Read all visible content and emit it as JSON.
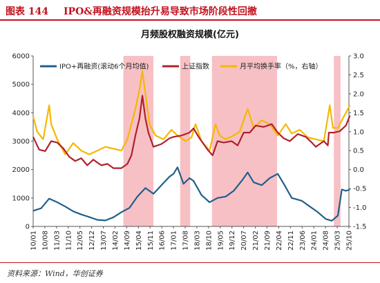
{
  "figure": {
    "label": "图表 144",
    "title": "IPO&再融资规模抬升易导致市场阶段性回撤",
    "source": "资料来源：Wind，华创证券"
  },
  "chart_data": {
    "type": "line",
    "title": "月频股权融资规模(亿元)",
    "x_tick_labels": [
      "10/01",
      "10/08",
      "11/03",
      "11/10",
      "12/05",
      "12/12",
      "13/07",
      "14/02",
      "14/09",
      "15/04",
      "15/11",
      "16/06",
      "17/01",
      "17/08",
      "18/03",
      "18/10",
      "19/05",
      "19/12",
      "20/07",
      "21/02",
      "21/09",
      "22/04",
      "22/11",
      "23/06",
      "24/01",
      "24/08",
      "25/03",
      "25/10"
    ],
    "x_range": [
      "2010-01",
      "2025-10"
    ],
    "y_left": {
      "min": 0,
      "max": 6000,
      "ticks": [
        "0",
        "1000",
        "2000",
        "3000",
        "4000",
        "5000",
        "6000"
      ]
    },
    "y_right": {
      "min": -1.5,
      "max": 3.0,
      "ticks": [
        "-1.5",
        "-1.0",
        "-0.5",
        "0.0",
        "0.5",
        "1.0",
        "1.5",
        "2.0",
        "2.5",
        "3.0"
      ]
    },
    "shaded_periods": [
      [
        "2014-07",
        "2016-01"
      ],
      [
        "2017-05",
        "2017-11"
      ],
      [
        "2018-12",
        "2022-03"
      ],
      [
        "2025-01",
        "2025-05"
      ]
    ],
    "series": [
      {
        "name": "IPO+再融资(滚动6个月均值)",
        "axis": "left",
        "color": "#1f5f8b",
        "values": [
          [
            2010.0,
            550
          ],
          [
            2010.4,
            640
          ],
          [
            2010.8,
            980
          ],
          [
            2011.2,
            850
          ],
          [
            2011.6,
            700
          ],
          [
            2012.0,
            530
          ],
          [
            2012.4,
            420
          ],
          [
            2012.8,
            330
          ],
          [
            2013.2,
            230
          ],
          [
            2013.6,
            210
          ],
          [
            2014.0,
            320
          ],
          [
            2014.4,
            500
          ],
          [
            2014.8,
            650
          ],
          [
            2015.2,
            1050
          ],
          [
            2015.6,
            1350
          ],
          [
            2016.0,
            1150
          ],
          [
            2016.4,
            1450
          ],
          [
            2016.8,
            1750
          ],
          [
            2017.0,
            1850
          ],
          [
            2017.2,
            2080
          ],
          [
            2017.5,
            1500
          ],
          [
            2017.8,
            1700
          ],
          [
            2018.0,
            1600
          ],
          [
            2018.4,
            1100
          ],
          [
            2018.8,
            850
          ],
          [
            2019.2,
            1000
          ],
          [
            2019.6,
            1050
          ],
          [
            2020.0,
            1250
          ],
          [
            2020.4,
            1600
          ],
          [
            2020.7,
            1900
          ],
          [
            2021.0,
            1550
          ],
          [
            2021.4,
            1450
          ],
          [
            2021.8,
            1700
          ],
          [
            2022.2,
            1850
          ],
          [
            2022.5,
            1500
          ],
          [
            2022.9,
            1000
          ],
          [
            2023.4,
            900
          ],
          [
            2023.8,
            700
          ],
          [
            2024.2,
            500
          ],
          [
            2024.6,
            260
          ],
          [
            2024.9,
            200
          ],
          [
            2025.2,
            380
          ],
          [
            2025.4,
            1300
          ],
          [
            2025.6,
            1250
          ],
          [
            2025.8,
            1300
          ]
        ]
      },
      {
        "name": "上证指数",
        "axis": "left",
        "color": "#b0202b",
        "values": [
          [
            2010.0,
            3150
          ],
          [
            2010.3,
            2700
          ],
          [
            2010.6,
            2650
          ],
          [
            2010.9,
            3000
          ],
          [
            2011.2,
            2950
          ],
          [
            2011.5,
            2750
          ],
          [
            2011.8,
            2450
          ],
          [
            2012.1,
            2300
          ],
          [
            2012.4,
            2400
          ],
          [
            2012.7,
            2150
          ],
          [
            2013.0,
            2350
          ],
          [
            2013.4,
            2150
          ],
          [
            2013.7,
            2200
          ],
          [
            2014.0,
            2050
          ],
          [
            2014.4,
            2050
          ],
          [
            2014.7,
            2200
          ],
          [
            2014.9,
            2500
          ],
          [
            2015.1,
            3200
          ],
          [
            2015.3,
            3800
          ],
          [
            2015.45,
            4600
          ],
          [
            2015.6,
            3800
          ],
          [
            2015.75,
            3300
          ],
          [
            2016.0,
            2800
          ],
          [
            2016.4,
            2900
          ],
          [
            2016.8,
            3100
          ],
          [
            2017.0,
            3150
          ],
          [
            2017.4,
            3200
          ],
          [
            2017.8,
            3300
          ],
          [
            2018.0,
            3450
          ],
          [
            2018.3,
            3100
          ],
          [
            2018.7,
            2700
          ],
          [
            2018.95,
            2500
          ],
          [
            2019.2,
            3000
          ],
          [
            2019.5,
            2950
          ],
          [
            2019.9,
            3000
          ],
          [
            2020.2,
            2850
          ],
          [
            2020.5,
            3300
          ],
          [
            2020.8,
            3300
          ],
          [
            2021.1,
            3550
          ],
          [
            2021.5,
            3500
          ],
          [
            2021.9,
            3600
          ],
          [
            2022.2,
            3300
          ],
          [
            2022.5,
            3100
          ],
          [
            2022.8,
            3000
          ],
          [
            2023.2,
            3250
          ],
          [
            2023.6,
            3150
          ],
          [
            2023.9,
            2950
          ],
          [
            2024.1,
            2800
          ],
          [
            2024.5,
            3000
          ],
          [
            2024.7,
            2850
          ],
          [
            2024.75,
            3300
          ],
          [
            2025.0,
            3300
          ],
          [
            2025.3,
            3350
          ],
          [
            2025.6,
            3550
          ],
          [
            2025.8,
            3900
          ]
        ]
      },
      {
        "name": "月平均换手率（%，右轴）",
        "axis": "right",
        "color": "#f5b800",
        "values": [
          [
            2010.0,
            1.4
          ],
          [
            2010.2,
            1.0
          ],
          [
            2010.5,
            0.8
          ],
          [
            2010.8,
            1.7
          ],
          [
            2010.9,
            1.2
          ],
          [
            2011.2,
            0.8
          ],
          [
            2011.6,
            0.4
          ],
          [
            2012.0,
            0.7
          ],
          [
            2012.4,
            0.5
          ],
          [
            2012.8,
            0.4
          ],
          [
            2013.2,
            0.5
          ],
          [
            2013.6,
            0.6
          ],
          [
            2014.0,
            0.55
          ],
          [
            2014.4,
            0.5
          ],
          [
            2014.7,
            0.8
          ],
          [
            2014.9,
            1.2
          ],
          [
            2015.1,
            1.6
          ],
          [
            2015.3,
            2.1
          ],
          [
            2015.45,
            2.6
          ],
          [
            2015.6,
            2.0
          ],
          [
            2015.8,
            1.2
          ],
          [
            2016.1,
            0.9
          ],
          [
            2016.5,
            0.8
          ],
          [
            2016.9,
            1.05
          ],
          [
            2017.2,
            0.9
          ],
          [
            2017.6,
            0.75
          ],
          [
            2017.9,
            0.85
          ],
          [
            2018.1,
            1.2
          ],
          [
            2018.4,
            0.75
          ],
          [
            2018.8,
            0.5
          ],
          [
            2019.1,
            1.2
          ],
          [
            2019.3,
            0.9
          ],
          [
            2019.6,
            0.8
          ],
          [
            2020.0,
            0.9
          ],
          [
            2020.3,
            1.0
          ],
          [
            2020.7,
            1.6
          ],
          [
            2021.0,
            1.1
          ],
          [
            2021.4,
            1.3
          ],
          [
            2021.8,
            1.2
          ],
          [
            2022.2,
            0.9
          ],
          [
            2022.6,
            1.2
          ],
          [
            2022.9,
            0.95
          ],
          [
            2023.3,
            1.05
          ],
          [
            2023.7,
            0.85
          ],
          [
            2024.1,
            0.8
          ],
          [
            2024.5,
            0.75
          ],
          [
            2024.8,
            1.7
          ],
          [
            2024.95,
            1.1
          ],
          [
            2025.2,
            1.1
          ],
          [
            2025.5,
            1.4
          ],
          [
            2025.8,
            1.7
          ]
        ]
      }
    ]
  }
}
